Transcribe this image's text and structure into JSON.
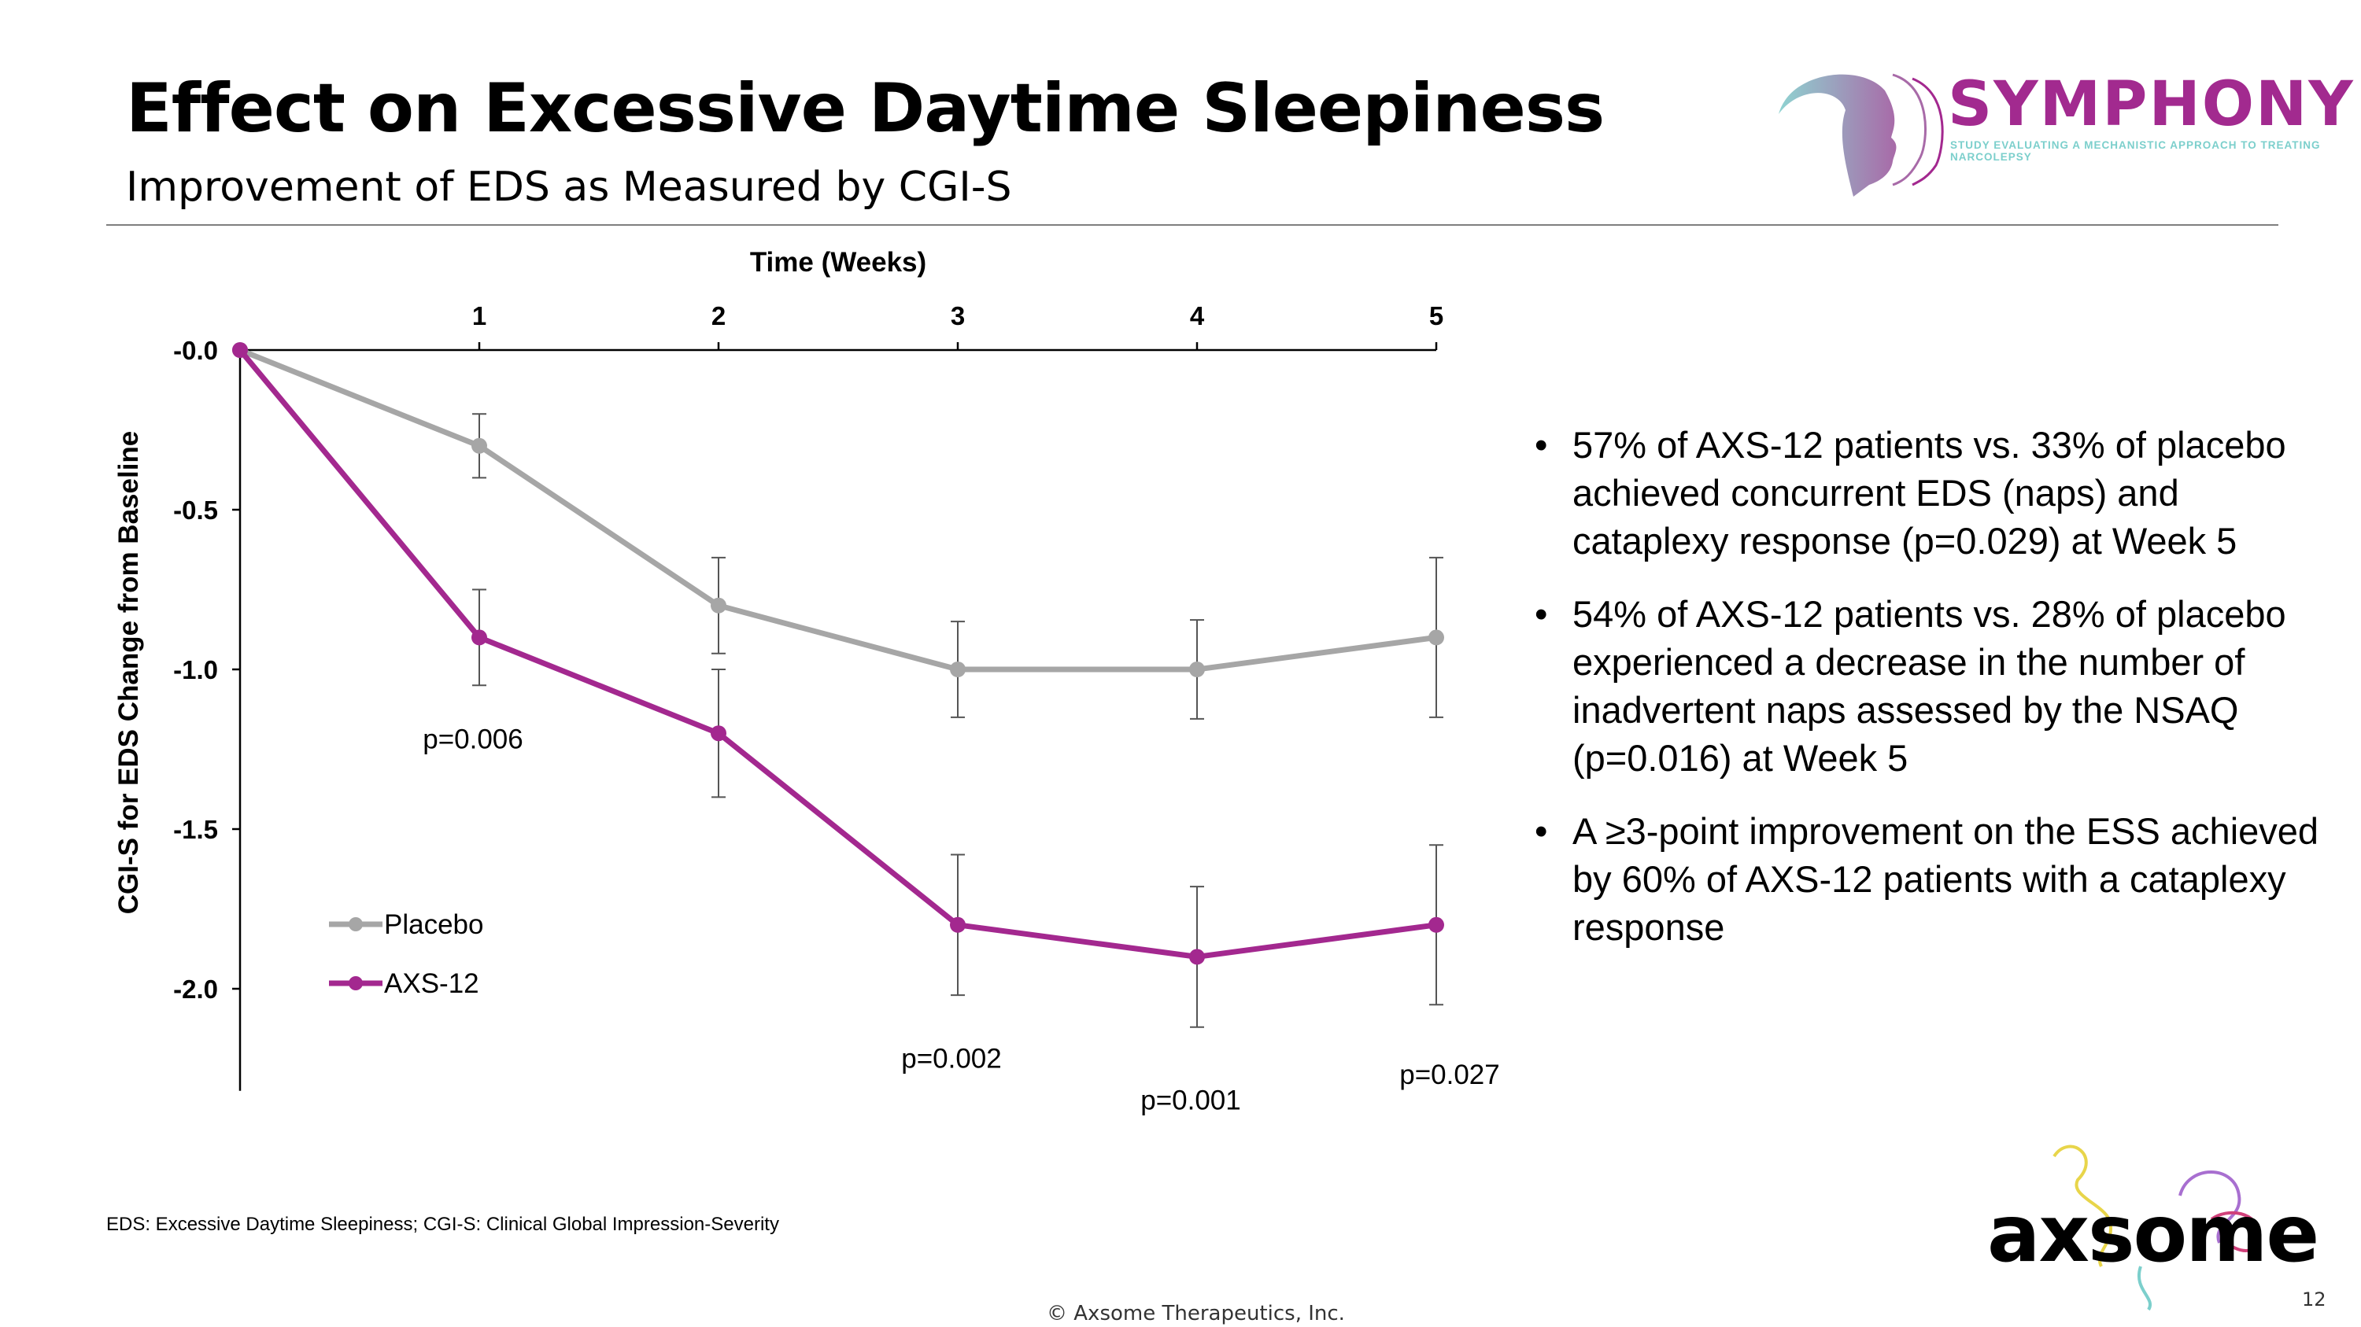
{
  "header": {
    "title": "Effect on Excessive Daytime Sleepiness",
    "subtitle": "Improvement of EDS as Measured by CGI-S"
  },
  "logos": {
    "symphony": {
      "name": "SYMPHONY",
      "tagline": "STUDY EVALUATING A MECHANISTIC APPROACH TO TREATING NARCOLEPSY"
    },
    "axsome": {
      "name": "axsome"
    }
  },
  "chart_data": {
    "type": "line",
    "xlabel": "Time (Weeks)",
    "ylabel": "CGI-S for EDS Change from Baseline",
    "x": [
      0,
      1,
      2,
      3,
      4,
      5
    ],
    "x_tick_labels": [
      "1",
      "2",
      "3",
      "4",
      "5"
    ],
    "y_tick_labels": [
      "-0.0",
      "-0.5",
      "-1.0",
      "-1.5",
      "-2.0"
    ],
    "ylim": [
      0,
      -2.3
    ],
    "x_axis_position": "top",
    "grid": false,
    "legend": "bottom-left",
    "series": [
      {
        "name": "Placebo",
        "color": "#a6a6a6",
        "values": [
          0,
          -0.3,
          -0.8,
          -1.0,
          -1.0,
          -0.9
        ],
        "errors": [
          0,
          0.1,
          0.15,
          0.15,
          0.155,
          0.25
        ]
      },
      {
        "name": "AXS-12",
        "color": "#a3288f",
        "values": [
          0,
          -0.9,
          -1.2,
          -1.8,
          -1.9,
          -1.8
        ],
        "errors": [
          0,
          0.15,
          0.2,
          0.22,
          0.22,
          0.25
        ]
      }
    ],
    "annotations": [
      {
        "x": 1,
        "text": "p=0.006"
      },
      {
        "x": 3,
        "text": "p=0.002"
      },
      {
        "x": 4,
        "text": "p=0.001"
      },
      {
        "x": 5,
        "text": "p=0.027"
      }
    ]
  },
  "bullets": [
    "57% of AXS-12 patients vs. 33% of placebo achieved concurrent EDS (naps) and cataplexy response (p=0.029) at Week 5",
    "54% of AXS-12 patients vs. 28% of placebo experienced a decrease in the number of inadvertent naps assessed by the NSAQ (p=0.016) at Week 5",
    "A ≥3-point improvement on the ESS achieved by 60% of AXS-12 patients with a cataplexy response"
  ],
  "footnote": "EDS: Excessive Daytime Sleepiness; CGI-S: Clinical Global Impression-Severity",
  "copyright": "© Axsome Therapeutics, Inc.",
  "page_number": "12"
}
